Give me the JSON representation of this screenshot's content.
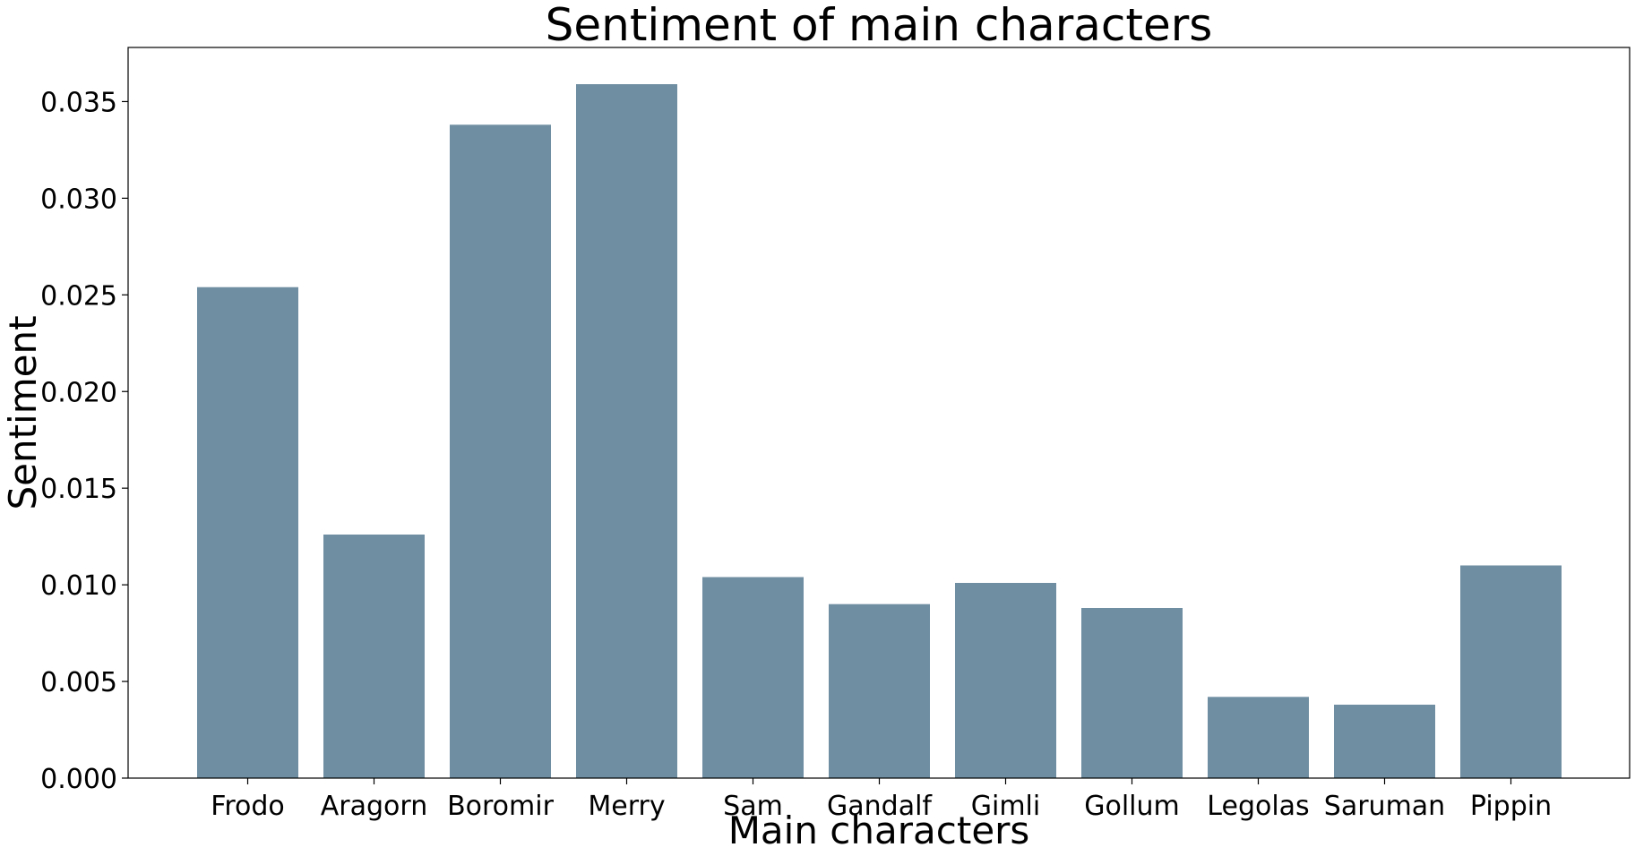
{
  "chart_data": {
    "type": "bar",
    "title": "Sentiment of main characters",
    "xlabel": "Main characters",
    "ylabel": "Sentiment",
    "categories": [
      "Frodo",
      "Aragorn",
      "Boromir",
      "Merry",
      "Sam",
      "Gandalf",
      "Gimli",
      "Gollum",
      "Legolas",
      "Saruman",
      "Pippin"
    ],
    "values": [
      0.0254,
      0.0126,
      0.0338,
      0.0359,
      0.0104,
      0.009,
      0.0101,
      0.0088,
      0.0042,
      0.0038,
      0.011
    ],
    "ylim": [
      0,
      0.0378
    ],
    "yticks": [
      0,
      0.005,
      0.01,
      0.015,
      0.02,
      0.025,
      0.03,
      0.035
    ],
    "ytick_labels": [
      "0.000",
      "0.005",
      "0.010",
      "0.015",
      "0.020",
      "0.025",
      "0.030",
      "0.035"
    ],
    "grid": false,
    "bar_color": "#6f8ea2"
  }
}
